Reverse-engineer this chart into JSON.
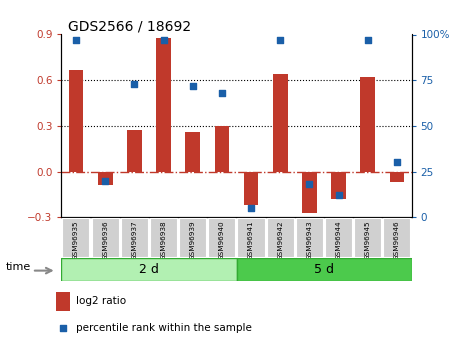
{
  "title": "GDS2566 / 18692",
  "samples": [
    "GSM96935",
    "GSM96936",
    "GSM96937",
    "GSM96938",
    "GSM96939",
    "GSM96940",
    "GSM96941",
    "GSM96942",
    "GSM96943",
    "GSM96944",
    "GSM96945",
    "GSM96946"
  ],
  "log2_ratio": [
    0.67,
    -0.09,
    0.27,
    0.88,
    0.26,
    0.3,
    -0.22,
    0.64,
    -0.27,
    -0.18,
    0.62,
    -0.07
  ],
  "percentile_rank": [
    97,
    20,
    73,
    97,
    72,
    68,
    5,
    97,
    18,
    12,
    97,
    30
  ],
  "group1_label": "2 d",
  "group1_count": 6,
  "group2_label": "5 d",
  "group2_count": 6,
  "ylim_left": [
    -0.3,
    0.9
  ],
  "ylim_right": [
    0,
    100
  ],
  "yticks_left": [
    -0.3,
    0.0,
    0.3,
    0.6,
    0.9
  ],
  "yticks_right": [
    0,
    25,
    50,
    75,
    100
  ],
  "bar_color": "#c0392b",
  "dot_color": "#1a5fa8",
  "dotted_lines": [
    0.3,
    0.6
  ],
  "time_label": "time",
  "legend_bar_label": "log2 ratio",
  "legend_dot_label": "percentile rank within the sample",
  "group_bg_color1": "#b2f0b2",
  "group_bg_color2": "#4cca4c",
  "tick_label_bg": "#d0d0d0"
}
